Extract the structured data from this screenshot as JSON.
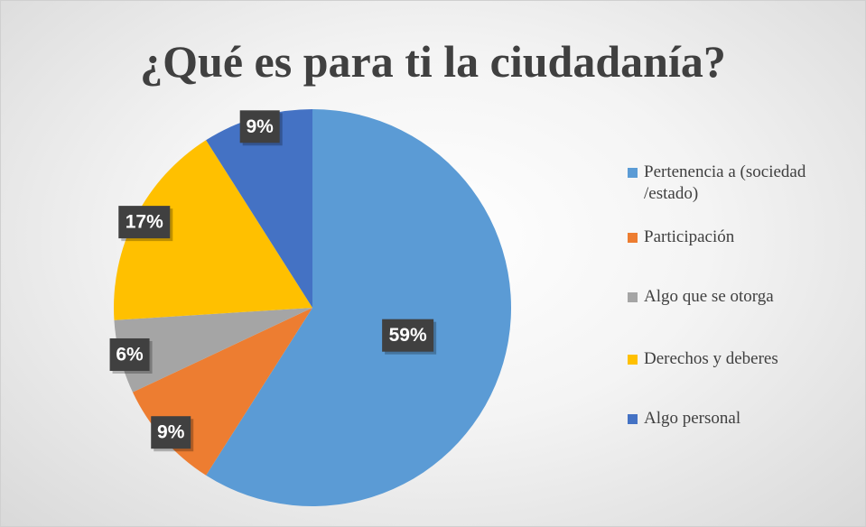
{
  "chart_data": {
    "type": "pie",
    "title": "¿Qué es para ti la ciudadanía?",
    "categories": [
      "Pertenencia a (sociedad /estado)",
      "Participación",
      "Algo que se otorga",
      "Derechos y deberes",
      "Algo personal"
    ],
    "values": [
      59,
      9,
      6,
      17,
      9
    ],
    "value_labels": [
      "59%",
      "9%",
      "6%",
      "17%",
      "9%"
    ],
    "colors": [
      "#5b9bd5",
      "#ed7d31",
      "#a5a5a5",
      "#ffc000",
      "#4472c4"
    ],
    "legend": "right"
  }
}
